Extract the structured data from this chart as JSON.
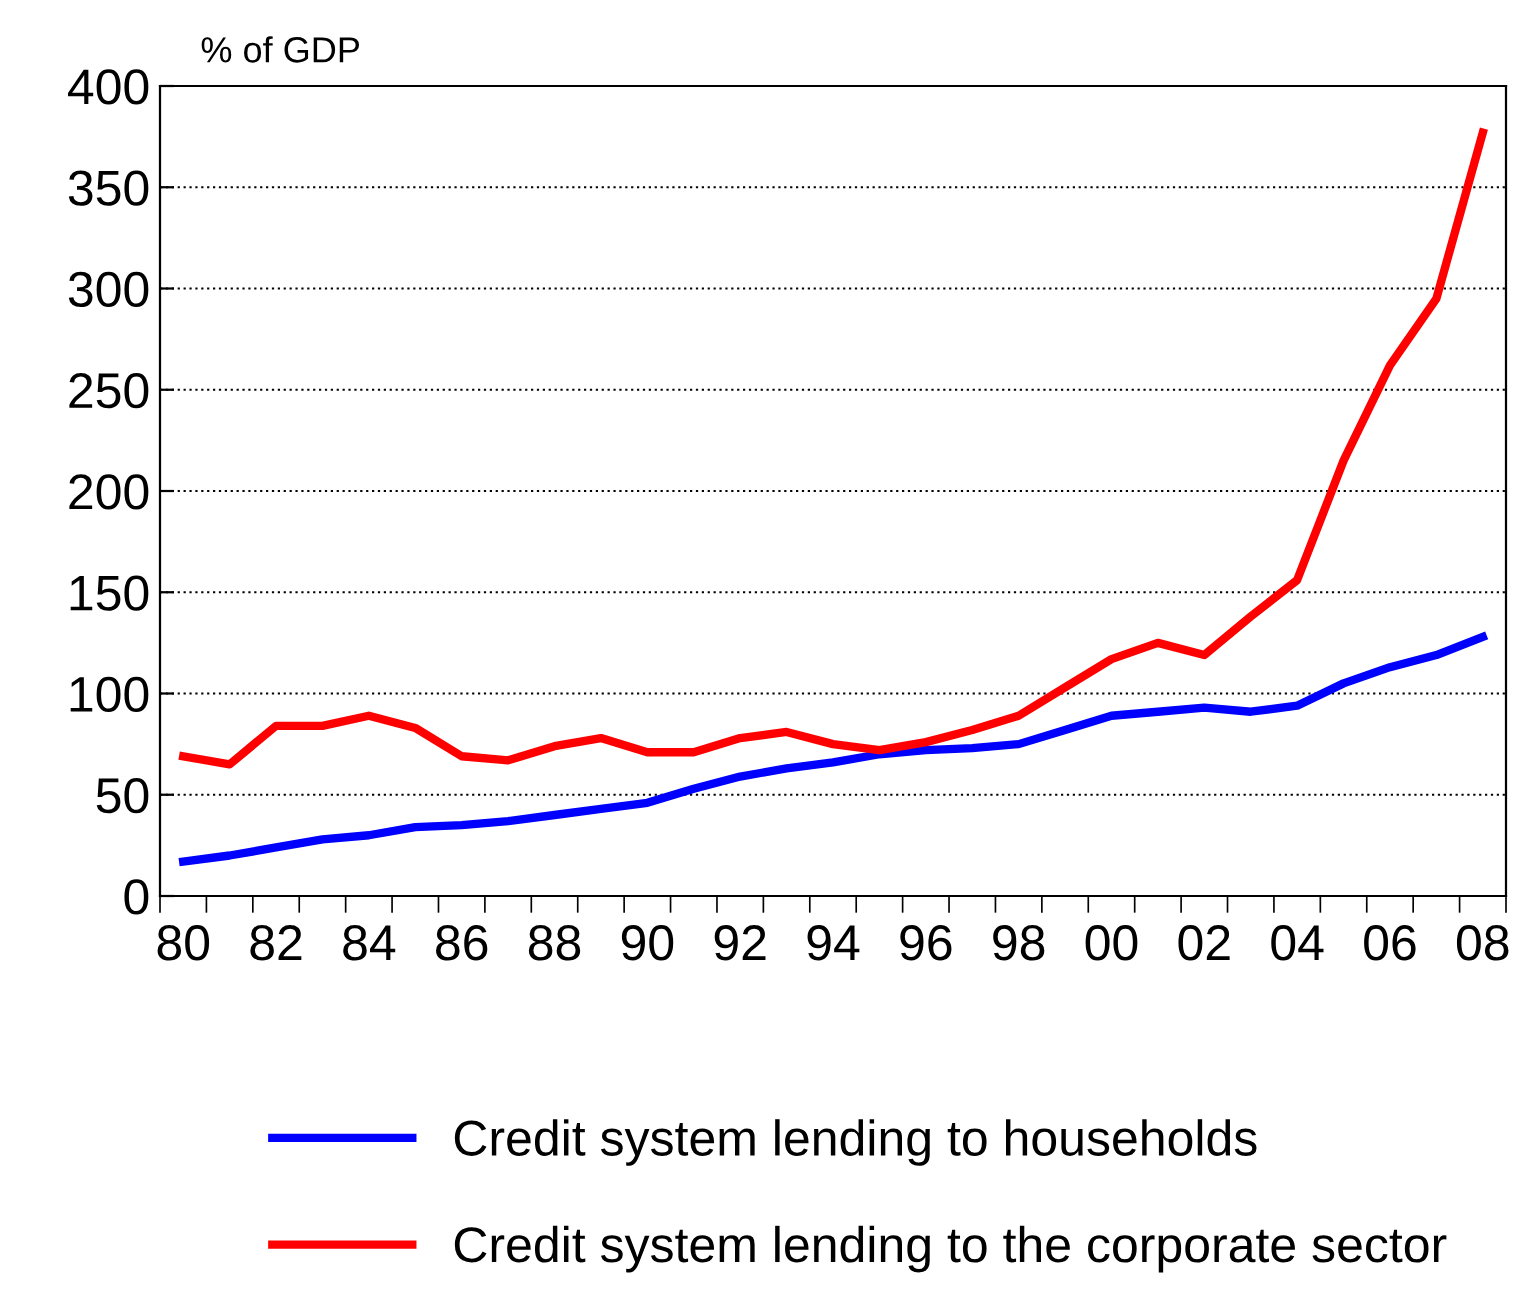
{
  "chart_data": {
    "type": "line",
    "ylabel": "% of GDP",
    "categories": [
      "80",
      null,
      "82",
      null,
      "84",
      null,
      "86",
      null,
      "88",
      null,
      "90",
      null,
      "92",
      null,
      "94",
      null,
      "96",
      null,
      "98",
      null,
      "00",
      null,
      "02",
      null,
      "04",
      null,
      "06",
      null,
      "08"
    ],
    "series": [
      {
        "name": "Credit system lending to households",
        "color": "#0000ff",
        "values": [
          17,
          20,
          24,
          28,
          30,
          34,
          35,
          37,
          40,
          43,
          46,
          53,
          59,
          63,
          66,
          70,
          72,
          73,
          75,
          82,
          89,
          91,
          93,
          91,
          94,
          105,
          113,
          119,
          128
        ]
      },
      {
        "name": "Credit system lending to the corporate sector",
        "color": "#ff0000",
        "values": [
          69,
          65,
          84,
          84,
          89,
          83,
          69,
          67,
          74,
          78,
          71,
          71,
          78,
          81,
          75,
          72,
          76,
          82,
          89,
          103,
          117,
          125,
          119,
          138,
          156,
          215,
          262,
          295,
          377
        ]
      }
    ],
    "ylim": [
      0,
      400
    ],
    "yticks": [
      0,
      50,
      100,
      150,
      200,
      250,
      300,
      350,
      400
    ],
    "grid": "y",
    "legend": "bottom",
    "marker": "none",
    "line_style": "solid"
  }
}
